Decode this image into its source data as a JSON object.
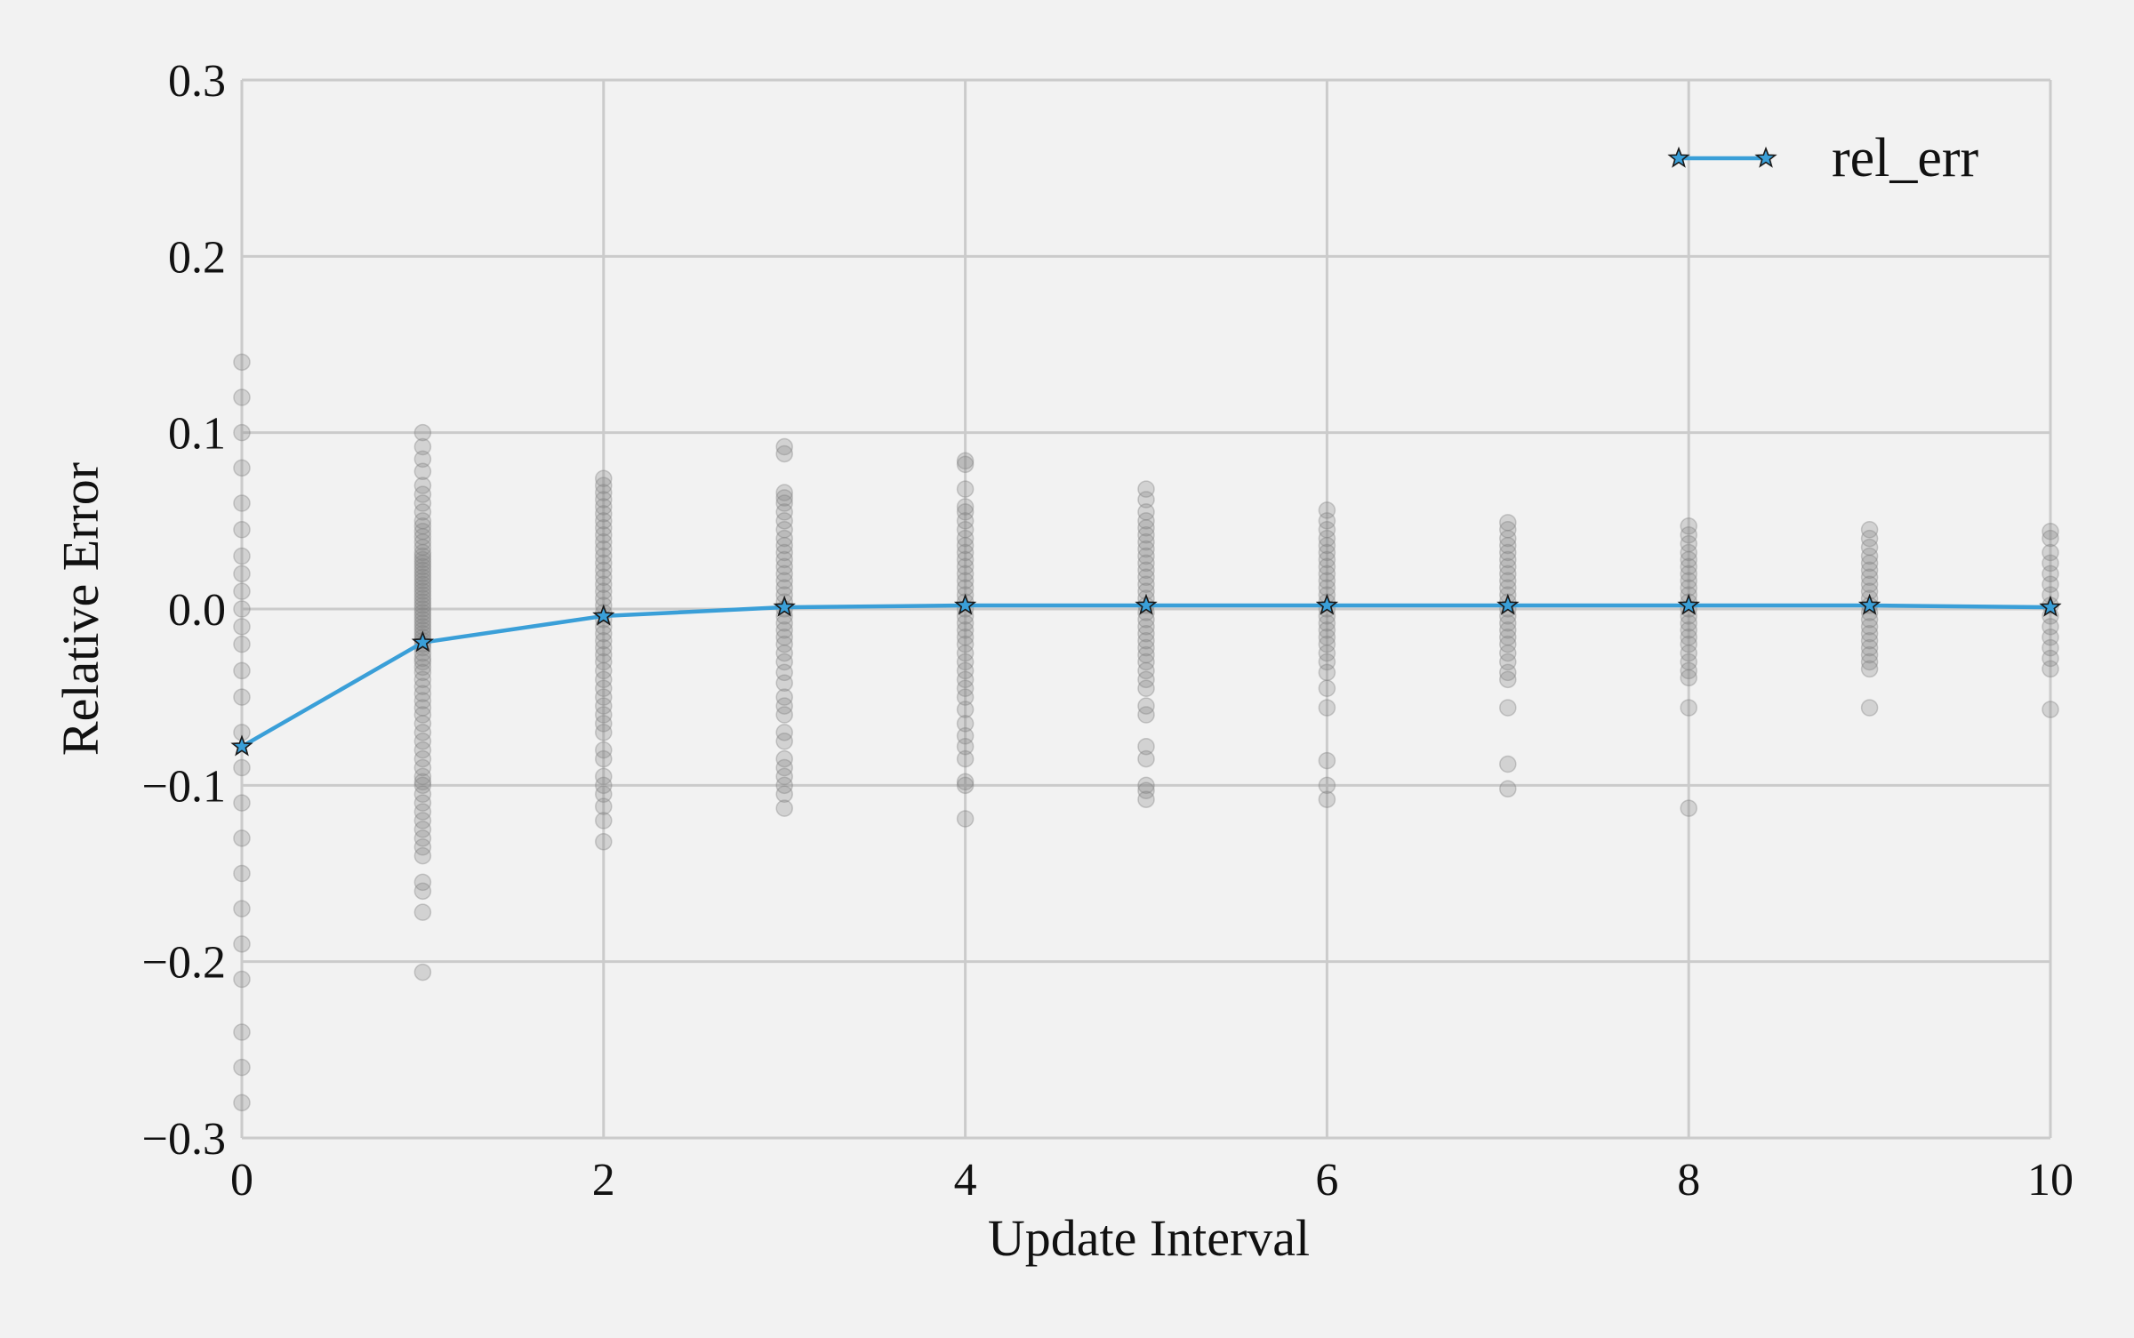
{
  "chart_data": {
    "type": "line",
    "title": "",
    "xlabel": "Update Interval",
    "ylabel": "Relative Error",
    "xlim": [
      0,
      10
    ],
    "ylim": [
      -0.3,
      0.3
    ],
    "x_ticks": [
      0,
      2,
      4,
      6,
      8,
      10
    ],
    "x_tick_labels": [
      "0",
      "2",
      "4",
      "6",
      "8",
      "10"
    ],
    "y_ticks": [
      -0.3,
      -0.2,
      -0.1,
      0.0,
      0.1,
      0.2,
      0.3
    ],
    "y_tick_labels": [
      "−0.3",
      "−0.2",
      "−0.1",
      "0.0",
      "0.1",
      "0.2",
      "0.3"
    ],
    "grid": true,
    "legend_position": "top-right",
    "series": [
      {
        "name": "rel_err",
        "color": "#3a9fd8",
        "marker": "star",
        "x": [
          0,
          1,
          2,
          3,
          4,
          5,
          6,
          7,
          8,
          9,
          10
        ],
        "y": [
          -0.078,
          -0.019,
          -0.004,
          0.001,
          0.002,
          0.002,
          0.002,
          0.002,
          0.002,
          0.002,
          0.001
        ]
      }
    ],
    "scatter": {
      "color": "#808080",
      "opacity": 0.28,
      "columns": [
        {
          "x": 0,
          "y": [
            0.14,
            0.12,
            0.1,
            0.08,
            0.06,
            0.045,
            0.03,
            0.02,
            0.01,
            0.0,
            -0.01,
            -0.02,
            -0.035,
            -0.05,
            -0.07,
            -0.09,
            -0.11,
            -0.13,
            -0.15,
            -0.17,
            -0.19,
            -0.21,
            -0.24,
            -0.26,
            -0.28
          ]
        },
        {
          "x": 1,
          "y": [
            0.1,
            0.092,
            0.085,
            0.078,
            0.07,
            0.065,
            0.06,
            0.055,
            0.05,
            0.047,
            0.044,
            0.041,
            0.038,
            0.035,
            0.032,
            0.03,
            0.028,
            0.026,
            0.024,
            0.022,
            0.02,
            0.018,
            0.016,
            0.014,
            0.012,
            0.01,
            0.008,
            0.006,
            0.004,
            0.002,
            0.0,
            -0.002,
            -0.004,
            -0.006,
            -0.008,
            -0.01,
            -0.012,
            -0.014,
            -0.016,
            -0.018,
            -0.02,
            -0.022,
            -0.025,
            -0.028,
            -0.03,
            -0.033,
            -0.036,
            -0.04,
            -0.044,
            -0.048,
            -0.052,
            -0.056,
            -0.06,
            -0.065,
            -0.07,
            -0.075,
            -0.08,
            -0.085,
            -0.09,
            -0.095,
            -0.098,
            -0.1,
            -0.105,
            -0.11,
            -0.115,
            -0.12,
            -0.125,
            -0.13,
            -0.135,
            -0.14,
            -0.155,
            -0.16,
            -0.172,
            -0.206
          ]
        },
        {
          "x": 2,
          "y": [
            0.074,
            0.07,
            0.066,
            0.062,
            0.058,
            0.054,
            0.05,
            0.046,
            0.042,
            0.038,
            0.034,
            0.03,
            0.026,
            0.022,
            0.018,
            0.014,
            0.01,
            0.006,
            0.002,
            -0.002,
            -0.006,
            -0.01,
            -0.014,
            -0.018,
            -0.022,
            -0.026,
            -0.03,
            -0.035,
            -0.04,
            -0.045,
            -0.05,
            -0.055,
            -0.06,
            -0.065,
            -0.07,
            -0.08,
            -0.085,
            -0.095,
            -0.1,
            -0.105,
            -0.112,
            -0.12,
            -0.132
          ]
        },
        {
          "x": 3,
          "y": [
            0.092,
            0.088,
            0.066,
            0.063,
            0.06,
            0.055,
            0.05,
            0.045,
            0.04,
            0.036,
            0.032,
            0.028,
            0.024,
            0.02,
            0.016,
            0.012,
            0.008,
            0.004,
            0.0,
            -0.004,
            -0.008,
            -0.012,
            -0.016,
            -0.02,
            -0.025,
            -0.03,
            -0.036,
            -0.042,
            -0.05,
            -0.055,
            -0.06,
            -0.07,
            -0.075,
            -0.085,
            -0.09,
            -0.095,
            -0.1,
            -0.105,
            -0.113
          ]
        },
        {
          "x": 4,
          "y": [
            0.084,
            0.082,
            0.068,
            0.058,
            0.055,
            0.05,
            0.045,
            0.04,
            0.036,
            0.032,
            0.028,
            0.024,
            0.02,
            0.016,
            0.012,
            0.008,
            0.004,
            0.0,
            -0.004,
            -0.008,
            -0.012,
            -0.016,
            -0.02,
            -0.025,
            -0.03,
            -0.035,
            -0.04,
            -0.045,
            -0.05,
            -0.057,
            -0.065,
            -0.072,
            -0.078,
            -0.085,
            -0.098,
            -0.1,
            -0.119
          ]
        },
        {
          "x": 5,
          "y": [
            0.068,
            0.062,
            0.055,
            0.05,
            0.046,
            0.042,
            0.038,
            0.034,
            0.03,
            0.026,
            0.022,
            0.018,
            0.014,
            0.01,
            0.006,
            0.002,
            -0.002,
            -0.006,
            -0.01,
            -0.014,
            -0.018,
            -0.022,
            -0.026,
            -0.03,
            -0.035,
            -0.04,
            -0.045,
            -0.055,
            -0.06,
            -0.078,
            -0.085,
            -0.1,
            -0.103,
            -0.108
          ]
        },
        {
          "x": 6,
          "y": [
            0.056,
            0.05,
            0.045,
            0.04,
            0.036,
            0.032,
            0.028,
            0.024,
            0.02,
            0.016,
            0.012,
            0.008,
            0.004,
            0.0,
            -0.004,
            -0.008,
            -0.012,
            -0.016,
            -0.02,
            -0.025,
            -0.03,
            -0.036,
            -0.045,
            -0.056,
            -0.086,
            -0.1,
            -0.108
          ]
        },
        {
          "x": 7,
          "y": [
            0.049,
            0.045,
            0.04,
            0.036,
            0.032,
            0.028,
            0.024,
            0.02,
            0.016,
            0.012,
            0.008,
            0.004,
            0.0,
            -0.004,
            -0.008,
            -0.012,
            -0.016,
            -0.02,
            -0.025,
            -0.03,
            -0.036,
            -0.04,
            -0.056,
            -0.088,
            -0.102
          ]
        },
        {
          "x": 8,
          "y": [
            0.047,
            0.042,
            0.037,
            0.032,
            0.028,
            0.024,
            0.02,
            0.016,
            0.012,
            0.008,
            0.004,
            0.0,
            -0.004,
            -0.008,
            -0.012,
            -0.016,
            -0.02,
            -0.025,
            -0.03,
            -0.035,
            -0.039,
            -0.056,
            -0.113
          ]
        },
        {
          "x": 9,
          "y": [
            0.045,
            0.04,
            0.035,
            0.03,
            0.026,
            0.022,
            0.018,
            0.014,
            0.01,
            0.006,
            0.002,
            -0.002,
            -0.006,
            -0.01,
            -0.014,
            -0.018,
            -0.022,
            -0.026,
            -0.03,
            -0.034,
            -0.056
          ]
        },
        {
          "x": 10,
          "y": [
            0.044,
            0.04,
            0.032,
            0.026,
            0.02,
            0.014,
            0.008,
            0.002,
            -0.004,
            -0.01,
            -0.016,
            -0.022,
            -0.028,
            -0.034,
            -0.057
          ]
        }
      ]
    }
  }
}
